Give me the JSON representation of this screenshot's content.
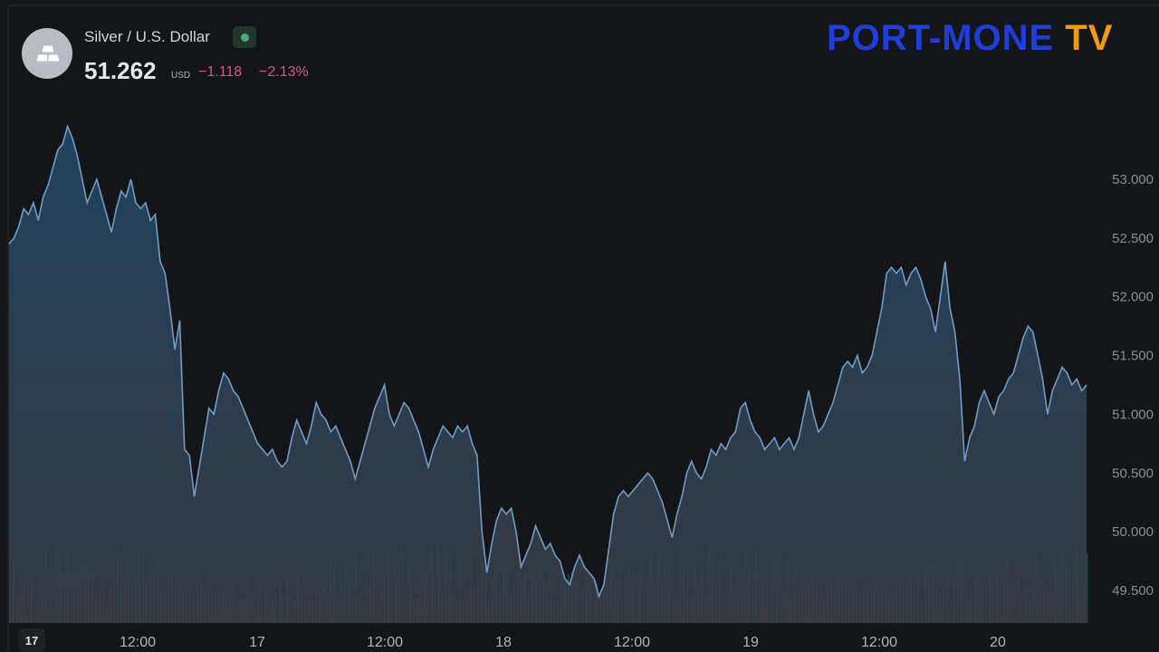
{
  "header": {
    "title": "Silver / U.S. Dollar",
    "price": "51.262",
    "currency": "USD",
    "change": "−1.118",
    "change_pct": "−2.13%"
  },
  "logo": {
    "text": "PORT-MONE TV",
    "colors": {
      "primary": "#1f3ed8",
      "accent": "#f29a13"
    }
  },
  "tv_mark": "17",
  "colors": {
    "background": "#131518",
    "line": "#6f9cc8",
    "area_top": "#234a6b",
    "area_bottom": "#3a3f47",
    "volume_up": "#2e6b5a",
    "volume_down": "#7a3347",
    "axis_text": "#8a8e97",
    "negative": "#e0537a"
  },
  "chart_data": {
    "type": "area",
    "title": "Silver / U.S. Dollar",
    "x_ticks": [
      "12:00",
      "17",
      "12:00",
      "18",
      "12:00",
      "19",
      "12:00",
      "20"
    ],
    "y_ticks": [
      "53.000",
      "52.500",
      "52.000",
      "51.500",
      "51.000",
      "50.500",
      "50.000",
      "49.500"
    ],
    "ylim": [
      49.35,
      53.45
    ],
    "grid": false,
    "series": [
      {
        "values": [
          52.45,
          52.5,
          52.6,
          52.75,
          52.7,
          52.8,
          52.65,
          52.85,
          52.95,
          53.1,
          53.25,
          53.3,
          53.45,
          53.35,
          53.2,
          53.0,
          52.8,
          52.9,
          53.0,
          52.85,
          52.7,
          52.55,
          52.75,
          52.9,
          52.85,
          53.0,
          52.8,
          52.75,
          52.8,
          52.65,
          52.7,
          52.3,
          52.2,
          51.9,
          51.55,
          51.8,
          50.7,
          50.65,
          50.3,
          50.55,
          50.8,
          51.05,
          51.0,
          51.2,
          51.35,
          51.3,
          51.2,
          51.15,
          51.05,
          50.95,
          50.85,
          50.75,
          50.7,
          50.65,
          50.7,
          50.6,
          50.55,
          50.6,
          50.8,
          50.95,
          50.85,
          50.75,
          50.9,
          51.1,
          51.0,
          50.95,
          50.85,
          50.9,
          50.8,
          50.7,
          50.6,
          50.45,
          50.6,
          50.75,
          50.9,
          51.05,
          51.15,
          51.25,
          51.0,
          50.9,
          51.0,
          51.1,
          51.05,
          50.95,
          50.85,
          50.7,
          50.55,
          50.7,
          50.8,
          50.9,
          50.85,
          50.8,
          50.9,
          50.85,
          50.9,
          50.75,
          50.65,
          50.0,
          49.65,
          49.9,
          50.1,
          50.2,
          50.15,
          50.2,
          50.0,
          49.7,
          49.8,
          49.9,
          50.05,
          49.95,
          49.85,
          49.9,
          49.8,
          49.75,
          49.6,
          49.55,
          49.7,
          49.8,
          49.7,
          49.65,
          49.6,
          49.45,
          49.55,
          49.85,
          50.15,
          50.3,
          50.35,
          50.3,
          50.35,
          50.4,
          50.45,
          50.5,
          50.45,
          50.35,
          50.25,
          50.1,
          49.95,
          50.15,
          50.3,
          50.5,
          50.6,
          50.5,
          50.45,
          50.55,
          50.7,
          50.65,
          50.75,
          50.7,
          50.8,
          50.85,
          51.05,
          51.1,
          50.95,
          50.85,
          50.8,
          50.7,
          50.75,
          50.8,
          50.7,
          50.75,
          50.8,
          50.7,
          50.8,
          51.0,
          51.2,
          51.0,
          50.85,
          50.9,
          51.0,
          51.1,
          51.25,
          51.4,
          51.45,
          51.4,
          51.5,
          51.35,
          51.4,
          51.5,
          51.7,
          51.9,
          52.2,
          52.25,
          52.2,
          52.25,
          52.1,
          52.2,
          52.25,
          52.15,
          52.0,
          51.9,
          51.7,
          52.0,
          52.3,
          51.9,
          51.7,
          51.3,
          50.6,
          50.8,
          50.9,
          51.1,
          51.2,
          51.1,
          51.0,
          51.15,
          51.2,
          51.3,
          51.35,
          51.5,
          51.65,
          51.75,
          51.7,
          51.5,
          51.3,
          51.0,
          51.2,
          51.3,
          51.4,
          51.35,
          51.25,
          51.3,
          51.2,
          51.25
        ]
      }
    ]
  }
}
